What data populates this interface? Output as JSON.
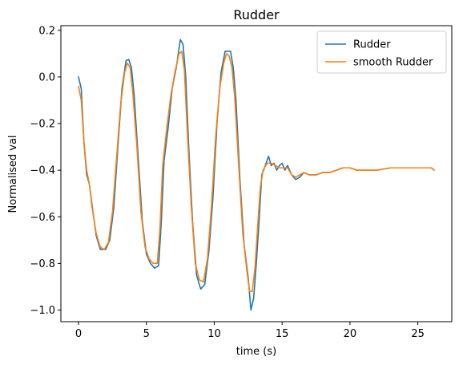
{
  "chart_data": {
    "type": "line",
    "title": "Rudder",
    "xlabel": "time (s)",
    "ylabel": "Normalised val",
    "xlim": [
      -1.3,
      27.5
    ],
    "ylim": [
      -1.05,
      0.22
    ],
    "xticks": [
      0,
      5,
      10,
      15,
      20,
      25
    ],
    "yticks": [
      -1.0,
      -0.8,
      -0.6,
      -0.4,
      -0.2,
      0.0,
      0.2
    ],
    "xtick_labels": [
      "0",
      "5",
      "10",
      "15",
      "20",
      "25"
    ],
    "ytick_labels": [
      "−1.0",
      "−0.8",
      "−0.6",
      "−0.4",
      "−0.2",
      "0.0",
      "0.2"
    ],
    "grid": false,
    "legend_position": "top-right",
    "series": [
      {
        "name": "Rudder",
        "color": "#1f77b4",
        "points": [
          [
            0,
            0.0
          ],
          [
            0.2,
            -0.05
          ],
          [
            0.4,
            -0.28
          ],
          [
            0.6,
            -0.42
          ],
          [
            0.8,
            -0.46
          ],
          [
            1.0,
            -0.55
          ],
          [
            1.3,
            -0.68
          ],
          [
            1.6,
            -0.74
          ],
          [
            2.0,
            -0.74
          ],
          [
            2.3,
            -0.7
          ],
          [
            2.6,
            -0.56
          ],
          [
            2.9,
            -0.3
          ],
          [
            3.2,
            -0.05
          ],
          [
            3.5,
            0.07
          ],
          [
            3.7,
            0.075
          ],
          [
            3.9,
            0.04
          ],
          [
            4.1,
            -0.08
          ],
          [
            4.4,
            -0.35
          ],
          [
            4.7,
            -0.62
          ],
          [
            5.0,
            -0.76
          ],
          [
            5.3,
            -0.8
          ],
          [
            5.6,
            -0.82
          ],
          [
            5.9,
            -0.81
          ],
          [
            6.1,
            -0.62
          ],
          [
            6.3,
            -0.36
          ],
          [
            6.6,
            -0.22
          ],
          [
            6.9,
            -0.05
          ],
          [
            7.2,
            0.04
          ],
          [
            7.5,
            0.16
          ],
          [
            7.7,
            0.14
          ],
          [
            7.9,
            0.0
          ],
          [
            8.1,
            -0.28
          ],
          [
            8.4,
            -0.62
          ],
          [
            8.7,
            -0.85
          ],
          [
            9.0,
            -0.91
          ],
          [
            9.3,
            -0.89
          ],
          [
            9.6,
            -0.75
          ],
          [
            9.9,
            -0.52
          ],
          [
            10.2,
            -0.2
          ],
          [
            10.5,
            0.02
          ],
          [
            10.8,
            0.11
          ],
          [
            11.0,
            0.11
          ],
          [
            11.2,
            0.11
          ],
          [
            11.4,
            0.04
          ],
          [
            11.6,
            -0.1
          ],
          [
            11.9,
            -0.45
          ],
          [
            12.2,
            -0.72
          ],
          [
            12.5,
            -0.86
          ],
          [
            12.7,
            -1.0
          ],
          [
            12.9,
            -0.95
          ],
          [
            13.1,
            -0.8
          ],
          [
            13.3,
            -0.62
          ],
          [
            13.5,
            -0.42
          ],
          [
            13.7,
            -0.39
          ],
          [
            14.0,
            -0.34
          ],
          [
            14.2,
            -0.38
          ],
          [
            14.4,
            -0.37
          ],
          [
            14.6,
            -0.4
          ],
          [
            14.8,
            -0.38
          ],
          [
            15.0,
            -0.37
          ],
          [
            15.2,
            -0.4
          ],
          [
            15.4,
            -0.38
          ],
          [
            15.7,
            -0.42
          ],
          [
            16.0,
            -0.44
          ],
          [
            16.3,
            -0.43
          ],
          [
            16.6,
            -0.41
          ],
          [
            17.0,
            -0.42
          ],
          [
            17.5,
            -0.42
          ],
          [
            18.0,
            -0.41
          ],
          [
            18.5,
            -0.41
          ],
          [
            19.0,
            -0.4
          ],
          [
            19.5,
            -0.39
          ],
          [
            20.0,
            -0.39
          ],
          [
            20.5,
            -0.4
          ],
          [
            21.0,
            -0.4
          ],
          [
            22.0,
            -0.4
          ],
          [
            23.0,
            -0.39
          ],
          [
            24.0,
            -0.39
          ],
          [
            25.0,
            -0.39
          ],
          [
            26.0,
            -0.39
          ],
          [
            26.2,
            -0.4
          ]
        ]
      },
      {
        "name": "smooth Rudder",
        "color": "#ff7f0e",
        "points": [
          [
            0,
            -0.04
          ],
          [
            0.2,
            -0.1
          ],
          [
            0.4,
            -0.28
          ],
          [
            0.6,
            -0.4
          ],
          [
            0.8,
            -0.46
          ],
          [
            1.0,
            -0.56
          ],
          [
            1.3,
            -0.67
          ],
          [
            1.6,
            -0.73
          ],
          [
            1.9,
            -0.74
          ],
          [
            2.2,
            -0.71
          ],
          [
            2.5,
            -0.58
          ],
          [
            2.8,
            -0.35
          ],
          [
            3.1,
            -0.12
          ],
          [
            3.4,
            0.02
          ],
          [
            3.6,
            0.06
          ],
          [
            3.8,
            0.04
          ],
          [
            4.0,
            -0.07
          ],
          [
            4.3,
            -0.3
          ],
          [
            4.6,
            -0.58
          ],
          [
            4.9,
            -0.73
          ],
          [
            5.2,
            -0.78
          ],
          [
            5.5,
            -0.8
          ],
          [
            5.8,
            -0.8
          ],
          [
            6.0,
            -0.65
          ],
          [
            6.2,
            -0.38
          ],
          [
            6.5,
            -0.22
          ],
          [
            6.8,
            -0.08
          ],
          [
            7.1,
            0.02
          ],
          [
            7.4,
            0.1
          ],
          [
            7.6,
            0.11
          ],
          [
            7.8,
            0.03
          ],
          [
            8.0,
            -0.22
          ],
          [
            8.3,
            -0.55
          ],
          [
            8.6,
            -0.8
          ],
          [
            8.9,
            -0.87
          ],
          [
            9.2,
            -0.88
          ],
          [
            9.5,
            -0.78
          ],
          [
            9.8,
            -0.55
          ],
          [
            10.1,
            -0.26
          ],
          [
            10.4,
            -0.05
          ],
          [
            10.7,
            0.06
          ],
          [
            10.9,
            0.1
          ],
          [
            11.1,
            0.09
          ],
          [
            11.3,
            0.04
          ],
          [
            11.5,
            -0.08
          ],
          [
            11.8,
            -0.38
          ],
          [
            12.1,
            -0.67
          ],
          [
            12.4,
            -0.83
          ],
          [
            12.6,
            -0.92
          ],
          [
            12.8,
            -0.92
          ],
          [
            13.0,
            -0.82
          ],
          [
            13.2,
            -0.64
          ],
          [
            13.4,
            -0.47
          ],
          [
            13.6,
            -0.4
          ],
          [
            13.9,
            -0.37
          ],
          [
            14.2,
            -0.37
          ],
          [
            14.5,
            -0.38
          ],
          [
            14.8,
            -0.39
          ],
          [
            15.1,
            -0.39
          ],
          [
            15.4,
            -0.39
          ],
          [
            15.7,
            -0.42
          ],
          [
            16.0,
            -0.43
          ],
          [
            16.3,
            -0.42
          ],
          [
            16.6,
            -0.41
          ],
          [
            17.0,
            -0.42
          ],
          [
            17.5,
            -0.42
          ],
          [
            18.0,
            -0.41
          ],
          [
            18.5,
            -0.41
          ],
          [
            19.0,
            -0.4
          ],
          [
            19.5,
            -0.39
          ],
          [
            20.0,
            -0.39
          ],
          [
            20.5,
            -0.4
          ],
          [
            21.0,
            -0.4
          ],
          [
            22.0,
            -0.4
          ],
          [
            23.0,
            -0.39
          ],
          [
            24.0,
            -0.39
          ],
          [
            25.0,
            -0.39
          ],
          [
            26.0,
            -0.39
          ],
          [
            26.2,
            -0.4
          ]
        ]
      }
    ]
  }
}
